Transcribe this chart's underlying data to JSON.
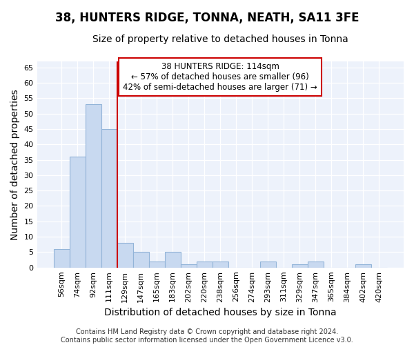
{
  "title": "38, HUNTERS RIDGE, TONNA, NEATH, SA11 3FE",
  "subtitle": "Size of property relative to detached houses in Tonna",
  "xlabel": "Distribution of detached houses by size in Tonna",
  "ylabel": "Number of detached properties",
  "categories": [
    "56sqm",
    "74sqm",
    "92sqm",
    "111sqm",
    "129sqm",
    "147sqm",
    "165sqm",
    "183sqm",
    "202sqm",
    "220sqm",
    "238sqm",
    "256sqm",
    "274sqm",
    "293sqm",
    "311sqm",
    "329sqm",
    "347sqm",
    "365sqm",
    "384sqm",
    "402sqm",
    "420sqm"
  ],
  "values": [
    6,
    36,
    53,
    45,
    8,
    5,
    2,
    5,
    1,
    2,
    2,
    0,
    0,
    2,
    0,
    1,
    2,
    0,
    0,
    1,
    0
  ],
  "bar_color": "#c8d9f0",
  "bar_edge_color": "#92b4d8",
  "highlight_line_index": 3,
  "highlight_line_color": "#cc0000",
  "annotation_box_text": "38 HUNTERS RIDGE: 114sqm\n← 57% of detached houses are smaller (96)\n42% of semi-detached houses are larger (71) →",
  "annotation_box_color": "#cc0000",
  "ylim": [
    0,
    67
  ],
  "yticks": [
    0,
    5,
    10,
    15,
    20,
    25,
    30,
    35,
    40,
    45,
    50,
    55,
    60,
    65
  ],
  "footer": "Contains HM Land Registry data © Crown copyright and database right 2024.\nContains public sector information licensed under the Open Government Licence v3.0.",
  "background_color": "#edf2fb",
  "title_fontsize": 12,
  "subtitle_fontsize": 10,
  "axis_label_fontsize": 10,
  "tick_fontsize": 8,
  "annotation_fontsize": 8.5
}
